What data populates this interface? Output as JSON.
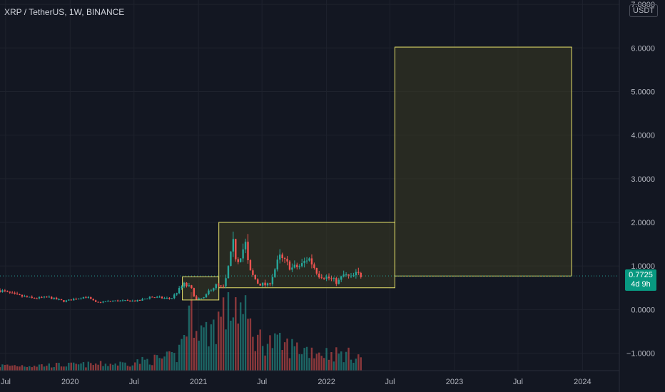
{
  "header": {
    "title": "XRP / TetherUS, 1W, BINANCE"
  },
  "unit": "USDT",
  "price_badge": {
    "price": "0.7725",
    "countdown": "4d 9h"
  },
  "colors": {
    "background": "#131722",
    "up": "#26a69a",
    "down": "#ef5350",
    "box_border": "#e6e16a",
    "box_fill": "#3a3b22",
    "last_price_line": "#26a69a",
    "axis_text": "#b2b5be"
  },
  "chart_data": {
    "type": "candlestick",
    "title": "XRP / TetherUS, 1W, BINANCE",
    "x_tick_labels": [
      "Jul",
      "2020",
      "Jul",
      "2021",
      "Jul",
      "2022",
      "Jul",
      "2023",
      "Jul",
      "2024"
    ],
    "x_ticks": [
      "2019-07-01",
      "2020-01-01",
      "2020-07-01",
      "2021-01-01",
      "2021-07-01",
      "2022-01-01",
      "2022-07-01",
      "2023-01-01",
      "2023-07-01",
      "2024-01-01"
    ],
    "x_range": [
      "2019-06-15",
      "2024-04-15"
    ],
    "y_tick_labels": [
      "7.0000",
      "6.0000",
      "5.0000",
      "4.0000",
      "3.0000",
      "2.0000",
      "1.0000",
      "0.0000",
      "−1.0000"
    ],
    "y_ticks": [
      7,
      6,
      5,
      4,
      3,
      2,
      1,
      0,
      -1
    ],
    "y_range": [
      -1.4,
      7.1
    ],
    "last_price": 0.7725,
    "price_path": [
      [
        "2019-06-15",
        0.44
      ],
      [
        "2019-08-01",
        0.33
      ],
      [
        "2019-09-15",
        0.26
      ],
      [
        "2019-11-01",
        0.28
      ],
      [
        "2019-12-15",
        0.19
      ],
      [
        "2020-02-15",
        0.3
      ],
      [
        "2020-03-15",
        0.16
      ],
      [
        "2020-05-01",
        0.2
      ],
      [
        "2020-07-15",
        0.2
      ],
      [
        "2020-08-15",
        0.29
      ],
      [
        "2020-10-15",
        0.25
      ],
      [
        "2020-11-20",
        0.58
      ],
      [
        "2020-12-10",
        0.5
      ],
      [
        "2020-12-25",
        0.22
      ],
      [
        "2021-01-20",
        0.28
      ],
      [
        "2021-02-01",
        0.45
      ],
      [
        "2021-02-20",
        0.55
      ],
      [
        "2021-03-15",
        0.5
      ],
      [
        "2021-04-10",
        1.5
      ],
      [
        "2021-04-20",
        1.1
      ],
      [
        "2021-05-15",
        1.5
      ],
      [
        "2021-05-25",
        0.9
      ],
      [
        "2021-06-20",
        0.6
      ],
      [
        "2021-07-20",
        0.55
      ],
      [
        "2021-08-20",
        1.2
      ],
      [
        "2021-09-10",
        1.05
      ],
      [
        "2021-09-25",
        0.95
      ],
      [
        "2021-10-20",
        1.0
      ],
      [
        "2021-11-10",
        1.2
      ],
      [
        "2021-12-10",
        0.8
      ],
      [
        "2022-01-15",
        0.7
      ],
      [
        "2022-02-01",
        0.62
      ],
      [
        "2022-02-20",
        0.8
      ],
      [
        "2022-03-10",
        0.72
      ],
      [
        "2022-03-28",
        0.82
      ],
      [
        "2022-04-14",
        0.7725
      ]
    ],
    "volume_path": [
      [
        "2019-06-15",
        0.07
      ],
      [
        "2020-01-01",
        0.08
      ],
      [
        "2020-06-01",
        0.1
      ],
      [
        "2020-11-01",
        0.2
      ],
      [
        "2020-12-15",
        0.95
      ],
      [
        "2021-01-15",
        0.5
      ],
      [
        "2021-02-15",
        0.65
      ],
      [
        "2021-04-15",
        1.0
      ],
      [
        "2021-06-15",
        0.45
      ],
      [
        "2021-09-01",
        0.35
      ],
      [
        "2022-01-01",
        0.25
      ],
      [
        "2022-04-14",
        0.2
      ]
    ],
    "rectangles": [
      {
        "x0": "2020-11-16",
        "x1": "2021-02-28",
        "y0": 0.22,
        "y1": 0.75
      },
      {
        "x0": "2021-02-28",
        "x1": "2022-07-15",
        "y0": 0.5,
        "y1": 2.0
      },
      {
        "x0": "2022-07-15",
        "x1": "2023-12-01",
        "y0": 0.77,
        "y1": 6.02
      }
    ]
  }
}
